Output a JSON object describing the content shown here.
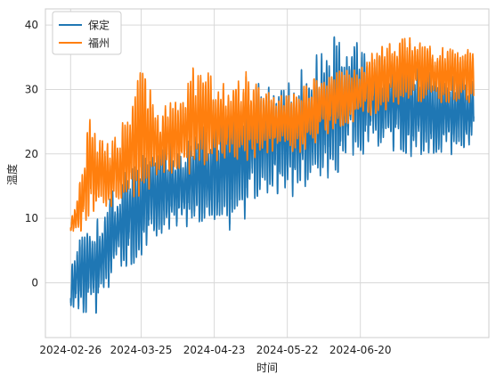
{
  "chart_data": {
    "type": "line",
    "title": "",
    "xlabel": "时间",
    "ylabel": "温度",
    "ylim": [
      -8.5,
      42.5
    ],
    "xlim": [
      "2024-02-16",
      "2024-08-10"
    ],
    "grid": true,
    "legend_position": "top-left",
    "x_ticks": [
      "2024-02-26",
      "2024-03-25",
      "2024-04-23",
      "2024-05-22",
      "2024-06-20"
    ],
    "y_ticks": [
      0,
      10,
      20,
      30,
      40
    ],
    "sampling": "hourly",
    "start": "2024-02-26",
    "end": "2024-08-04",
    "series": [
      {
        "name": "保定",
        "color": "#1f77b4",
        "daily": [
          {
            "date": "2024-02-26",
            "min": -3.5,
            "max": 3.0
          },
          {
            "date": "2024-03-01",
            "min": -6.0,
            "max": 8.0
          },
          {
            "date": "2024-03-08",
            "min": -4.5,
            "max": 11.0
          },
          {
            "date": "2024-03-15",
            "min": 2.0,
            "max": 15.0
          },
          {
            "date": "2024-03-22",
            "min": 3.0,
            "max": 19.0
          },
          {
            "date": "2024-03-29",
            "min": 6.0,
            "max": 21.0
          },
          {
            "date": "2024-04-05",
            "min": 8.0,
            "max": 22.0
          },
          {
            "date": "2024-04-12",
            "min": 8.0,
            "max": 23.0
          },
          {
            "date": "2024-04-19",
            "min": 9.0,
            "max": 25.0
          },
          {
            "date": "2024-04-26",
            "min": 6.0,
            "max": 27.0
          },
          {
            "date": "2024-05-03",
            "min": 9.0,
            "max": 29.0
          },
          {
            "date": "2024-05-10",
            "min": 12.0,
            "max": 31.0
          },
          {
            "date": "2024-05-17",
            "min": 14.0,
            "max": 30.0
          },
          {
            "date": "2024-05-24",
            "min": 13.0,
            "max": 33.0
          },
          {
            "date": "2024-05-31",
            "min": 15.0,
            "max": 35.0
          },
          {
            "date": "2024-06-07",
            "min": 16.0,
            "max": 37.0
          },
          {
            "date": "2024-06-14",
            "min": 18.0,
            "max": 40.0
          },
          {
            "date": "2024-06-21",
            "min": 20.0,
            "max": 37.0
          },
          {
            "date": "2024-06-28",
            "min": 19.0,
            "max": 35.0
          },
          {
            "date": "2024-07-05",
            "min": 21.0,
            "max": 35.0
          },
          {
            "date": "2024-07-12",
            "min": 19.0,
            "max": 34.0
          },
          {
            "date": "2024-07-19",
            "min": 20.0,
            "max": 33.0
          },
          {
            "date": "2024-07-26",
            "min": 19.0,
            "max": 33.0
          },
          {
            "date": "2024-08-04",
            "min": 22.0,
            "max": 33.0
          }
        ]
      },
      {
        "name": "福州",
        "color": "#ff7f0e",
        "daily": [
          {
            "date": "2024-02-26",
            "min": 7.5,
            "max": 10.0
          },
          {
            "date": "2024-03-01",
            "min": 8.0,
            "max": 16.0
          },
          {
            "date": "2024-03-05",
            "min": 10.0,
            "max": 27.0
          },
          {
            "date": "2024-03-11",
            "min": 11.0,
            "max": 22.0
          },
          {
            "date": "2024-03-18",
            "min": 12.0,
            "max": 25.0
          },
          {
            "date": "2024-03-25",
            "min": 13.0,
            "max": 33.0
          },
          {
            "date": "2024-04-01",
            "min": 15.0,
            "max": 27.0
          },
          {
            "date": "2024-04-08",
            "min": 16.0,
            "max": 29.0
          },
          {
            "date": "2024-04-15",
            "min": 17.0,
            "max": 34.0
          },
          {
            "date": "2024-04-22",
            "min": 17.0,
            "max": 33.0
          },
          {
            "date": "2024-04-29",
            "min": 18.0,
            "max": 31.0
          },
          {
            "date": "2024-05-06",
            "min": 19.0,
            "max": 33.0
          },
          {
            "date": "2024-05-13",
            "min": 20.0,
            "max": 30.0
          },
          {
            "date": "2024-05-20",
            "min": 21.0,
            "max": 30.0
          },
          {
            "date": "2024-05-27",
            "min": 20.0,
            "max": 30.0
          },
          {
            "date": "2024-06-03",
            "min": 22.0,
            "max": 32.0
          },
          {
            "date": "2024-06-10",
            "min": 24.0,
            "max": 33.0
          },
          {
            "date": "2024-06-17",
            "min": 25.0,
            "max": 33.0
          },
          {
            "date": "2024-06-24",
            "min": 26.0,
            "max": 36.0
          },
          {
            "date": "2024-07-01",
            "min": 27.0,
            "max": 37.0
          },
          {
            "date": "2024-07-08",
            "min": 28.0,
            "max": 38.0
          },
          {
            "date": "2024-07-15",
            "min": 28.0,
            "max": 38.0
          },
          {
            "date": "2024-07-22",
            "min": 28.0,
            "max": 37.0
          },
          {
            "date": "2024-08-04",
            "min": 28.0,
            "max": 36.0
          }
        ]
      }
    ]
  }
}
